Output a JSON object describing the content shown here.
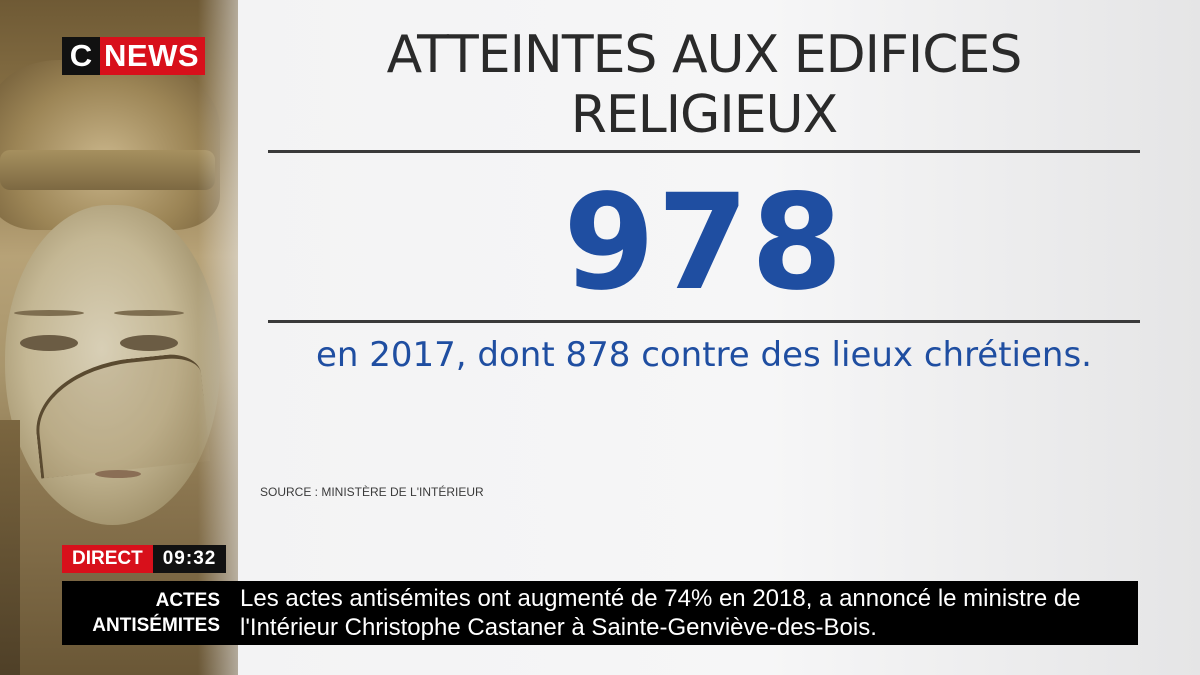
{
  "logo": {
    "c": "C",
    "news": "NEWS"
  },
  "graphic": {
    "title_line1": "ATTEINTES AUX EDIFICES",
    "title_line2": "RELIGIEUX",
    "figure": "978",
    "subtitle": "en 2017, dont 878 contre des lieux chrétiens.",
    "source": "SOURCE : MINISTÈRE DE L'INTÉRIEUR"
  },
  "live": {
    "tag": "DIRECT",
    "time": "09:32"
  },
  "ticker": {
    "label_line1": "ACTES",
    "label_line2": "ANTISÉMITES",
    "text_line1": "Les actes antisémites ont augmenté de 74% en 2018, a annoncé le ministre de",
    "text_line2": "l'Intérieur Christophe Castaner à Sainte-Genviève-des-Bois."
  },
  "colors": {
    "accent_blue": "#1f4ea1",
    "brand_red": "#d8101b",
    "ticker_bg": "#000000"
  }
}
